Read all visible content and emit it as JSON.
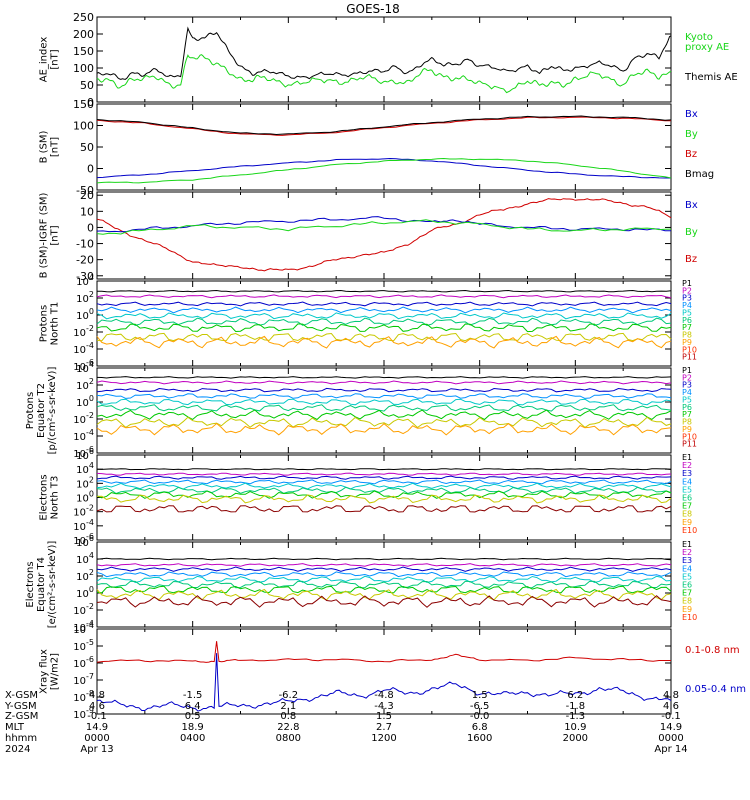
{
  "title": "GOES-18",
  "colors": {
    "axis": "#000000",
    "black": "#000000",
    "green": "#19d619",
    "blue": "#0000c8",
    "red": "#d00000",
    "darkred": "#8b0000"
  },
  "chart_data": [
    {
      "type": "line",
      "panel": "ae_index",
      "ylabel_lines": [
        "AE_index",
        "[nT]"
      ],
      "ylim": [
        0,
        250
      ],
      "yticks": [
        "0",
        "50",
        "100",
        "150",
        "200",
        "250"
      ],
      "legend": [
        {
          "text": "Kyoto",
          "color": "green"
        },
        {
          "text": "proxy AE",
          "color": "green"
        },
        {
          "text": "Themis AE",
          "color": "black"
        }
      ],
      "series": [
        {
          "name": "Themis AE",
          "color": "black",
          "x": [
            0,
            0.5,
            1,
            1.5,
            2,
            2.5,
            3,
            3.5,
            3.8,
            4,
            4.5,
            5,
            5.5,
            6,
            6.5,
            7,
            8,
            9,
            10,
            11,
            12,
            12.5,
            13,
            13.5,
            14,
            14.5,
            15,
            15.5,
            16,
            17,
            18,
            18.5,
            19,
            19.5,
            20,
            21,
            22,
            22.5,
            23,
            23.5,
            24
          ],
          "values": [
            75,
            80,
            70,
            90,
            80,
            90,
            70,
            85,
            220,
            190,
            185,
            200,
            150,
            110,
            85,
            85,
            80,
            75,
            80,
            90,
            85,
            105,
            90,
            110,
            120,
            105,
            115,
            130,
            105,
            90,
            110,
            80,
            100,
            95,
            105,
            110,
            95,
            135,
            140,
            125,
            195
          ]
        },
        {
          "name": "Kyoto proxy AE",
          "color": "green",
          "x": [
            0,
            0.5,
            1,
            1.5,
            2,
            2.5,
            3,
            3.5,
            3.8,
            4,
            4.5,
            5,
            5.5,
            6,
            6.5,
            7,
            8,
            9,
            10,
            11,
            12,
            12.5,
            13,
            13.5,
            14,
            14.5,
            15,
            15.5,
            16,
            17,
            18,
            18.5,
            19,
            19.5,
            20,
            21,
            22,
            22.5,
            23,
            23.5,
            24
          ],
          "values": [
            60,
            65,
            55,
            70,
            60,
            70,
            55,
            60,
            140,
            130,
            120,
            110,
            100,
            70,
            60,
            65,
            60,
            55,
            65,
            70,
            55,
            70,
            60,
            80,
            85,
            75,
            80,
            70,
            45,
            40,
            60,
            40,
            55,
            60,
            70,
            75,
            60,
            85,
            80,
            70,
            90
          ]
        }
      ]
    },
    {
      "type": "line",
      "panel": "b_sm",
      "ylabel_lines": [
        "B (SM)",
        "[nT]"
      ],
      "ylim": [
        -50,
        150
      ],
      "yticks": [
        "-50",
        "0",
        "50",
        "100",
        "150"
      ],
      "legend": [
        {
          "text": "Bx",
          "color": "blue"
        },
        {
          "text": "By",
          "color": "green"
        },
        {
          "text": "Bz",
          "color": "red"
        },
        {
          "text": "Bmag",
          "color": "black"
        }
      ],
      "series": [
        {
          "name": "Bz",
          "color": "red",
          "x": [
            0,
            2,
            4,
            6,
            8,
            10,
            12,
            14,
            16,
            18,
            20,
            22,
            24
          ],
          "values": [
            112,
            105,
            92,
            80,
            78,
            84,
            95,
            105,
            113,
            118,
            119,
            117,
            111
          ]
        },
        {
          "name": "Bmag",
          "color": "black",
          "x": [
            0,
            2,
            4,
            6,
            8,
            10,
            12,
            14,
            16,
            18,
            20,
            22,
            24
          ],
          "values": [
            114,
            107,
            94,
            82,
            80,
            86,
            97,
            107,
            115,
            120,
            121,
            119,
            113
          ]
        },
        {
          "name": "Bx",
          "color": "blue",
          "x": [
            0,
            2,
            4,
            6,
            8,
            10,
            12,
            14,
            16,
            18,
            20,
            22,
            24
          ],
          "values": [
            -21,
            -14,
            -5,
            5,
            13,
            20,
            23,
            18,
            7,
            -4,
            -13,
            -19,
            -22
          ]
        },
        {
          "name": "By",
          "color": "green",
          "x": [
            0,
            2,
            4,
            6,
            8,
            10,
            12,
            14,
            16,
            18,
            20,
            22,
            24
          ],
          "values": [
            -33,
            -32,
            -26,
            -15,
            -3,
            9,
            17,
            22,
            22,
            18,
            8,
            -6,
            -22
          ]
        }
      ]
    },
    {
      "type": "line",
      "panel": "b_minus_igrf",
      "ylabel_lines": [
        "B (SM)-IGRF (SM)",
        "[nT]"
      ],
      "ylim": [
        -32,
        22
      ],
      "yticks": [
        "-30",
        "-20",
        "-10",
        "0",
        "10",
        "20"
      ],
      "legend": [
        {
          "text": "Bx",
          "color": "blue"
        },
        {
          "text": "By",
          "color": "green"
        },
        {
          "text": "Bz",
          "color": "red"
        }
      ],
      "series": [
        {
          "name": "Bz",
          "color": "red",
          "x": [
            0,
            1,
            2,
            3,
            4,
            5,
            6,
            7,
            8,
            9,
            10,
            11,
            12,
            13,
            14,
            15,
            16,
            17,
            18,
            19,
            20,
            21,
            22,
            23,
            24
          ],
          "values": [
            5,
            -2,
            -8,
            -14,
            -21,
            -24,
            -24,
            -27,
            -26,
            -24,
            -20,
            -17,
            -16,
            -10,
            -2,
            2,
            8,
            11,
            15,
            17,
            18,
            17,
            15,
            13,
            6
          ]
        },
        {
          "name": "Bx",
          "color": "blue",
          "x": [
            0,
            2,
            4,
            6,
            8,
            10,
            12,
            14,
            15,
            16,
            18,
            20,
            22,
            24
          ],
          "values": [
            -3,
            -1,
            1,
            3,
            4,
            5,
            6,
            3,
            5,
            2,
            0,
            -1,
            -1,
            -2
          ]
        },
        {
          "name": "By",
          "color": "green",
          "x": [
            0,
            2,
            4,
            6,
            8,
            10,
            12,
            14,
            16,
            18,
            20,
            22,
            24
          ],
          "values": [
            -4,
            -2,
            1,
            0,
            -1,
            1,
            3,
            4,
            2,
            -1,
            -2,
            -1,
            -1
          ]
        }
      ]
    },
    {
      "type": "line",
      "panel": "protons_north_t1",
      "log_scale": true,
      "ylabel_lines": [
        "Protons",
        "North T1"
      ],
      "ylim_exp": [
        -6,
        4
      ],
      "ytick_exps": [
        -6,
        -4,
        -2,
        0,
        2,
        4
      ],
      "legend": [
        "P1",
        "P2",
        "P3",
        "P4",
        "P5",
        "P6",
        "P7",
        "P8",
        "P9",
        "P10",
        "P11"
      ],
      "level_exps": [
        2.8,
        2.2,
        1.3,
        0.6,
        -0.1,
        -0.8,
        -1.5,
        -2.6,
        -3.2
      ]
    },
    {
      "type": "line",
      "panel": "protons_equator_t2",
      "log_scale": true,
      "ylabel_lines": [
        "Protons",
        "Equator T2",
        "[p/(cm²-s-sr-keV)]"
      ],
      "ylim_exp": [
        -6,
        4
      ],
      "ytick_exps": [
        -6,
        -4,
        -2,
        0,
        2,
        4
      ],
      "legend": [
        "P1",
        "P2",
        "P3",
        "P4",
        "P5",
        "P6",
        "P7",
        "P8",
        "P9",
        "P10",
        "P11"
      ],
      "level_exps": [
        2.9,
        2.3,
        1.4,
        0.7,
        0.0,
        -0.7,
        -1.5,
        -2.4,
        -3.2
      ]
    },
    {
      "type": "line",
      "panel": "electrons_north_t3",
      "log_scale": true,
      "ylabel_lines": [
        "Electrons",
        "North T3"
      ],
      "ylim_exp": [
        -6,
        6
      ],
      "ytick_exps": [
        -6,
        -4,
        -2,
        0,
        2,
        4,
        6
      ],
      "legend": [
        "E1",
        "E2",
        "E3",
        "E4",
        "E5",
        "E6",
        "E7",
        "E8",
        "E9",
        "E10"
      ],
      "level_exps": [
        4.0,
        3.3,
        2.8,
        2.2,
        1.6,
        1.0,
        0.4,
        -0.2,
        -1.6
      ]
    },
    {
      "type": "line",
      "panel": "electrons_equator_t4",
      "log_scale": true,
      "ylabel_lines": [
        "Electrons",
        "Equator T4",
        "[e/(cm²-s-sr-keV)]"
      ],
      "ylim_exp": [
        -4,
        6
      ],
      "ytick_exps": [
        -4,
        -2,
        0,
        2,
        4,
        6
      ],
      "legend": [
        "E1",
        "E2",
        "E3",
        "E4",
        "E5",
        "E6",
        "E7",
        "E8",
        "E9",
        "E10"
      ],
      "level_exps": [
        4.0,
        3.3,
        2.8,
        2.2,
        1.6,
        1.0,
        0.4,
        -0.2,
        -1.0
      ]
    },
    {
      "type": "line",
      "panel": "xray_flux",
      "log_scale": true,
      "ylabel_lines": [
        "Xray flux",
        "[W/m2]"
      ],
      "ylim_exp": [
        -9,
        -4
      ],
      "ytick_exps": [
        -9,
        -8,
        -7,
        -6,
        -5,
        -4
      ],
      "legend": [
        {
          "text": "0.1-0.8 nm",
          "color": "red"
        },
        {
          "text": "0.05-0.4 nm",
          "color": "blue"
        }
      ],
      "series": [
        {
          "name": "0.1-0.8 nm",
          "color": "red",
          "x": [
            0,
            2,
            4,
            4.9,
            5,
            5.1,
            6,
            8,
            10,
            12,
            14,
            15,
            16,
            18,
            20,
            22,
            24
          ],
          "values_exp": [
            -5.9,
            -5.85,
            -5.9,
            -5.9,
            -4.7,
            -5.9,
            -5.85,
            -5.8,
            -5.8,
            -5.9,
            -5.8,
            -5.55,
            -5.8,
            -5.85,
            -5.7,
            -5.8,
            -5.85
          ]
        },
        {
          "name": "0.05-0.4 nm",
          "color": "blue",
          "x": [
            0,
            1,
            2,
            3,
            4,
            4.9,
            5,
            5.1,
            6,
            7,
            8,
            9,
            10,
            11,
            12,
            13,
            14,
            15,
            16,
            17,
            18,
            19,
            20,
            21,
            22,
            23,
            24
          ],
          "values_exp": [
            -8.2,
            -8.5,
            -8.6,
            -8.5,
            -8.6,
            -8.6,
            -5.4,
            -8.6,
            -8.5,
            -8.4,
            -8.3,
            -8.0,
            -7.8,
            -7.9,
            -7.6,
            -7.8,
            -7.5,
            -7.3,
            -7.7,
            -7.9,
            -7.7,
            -7.9,
            -7.8,
            -7.5,
            -7.7,
            -8.0,
            -8.2
          ]
        }
      ]
    }
  ],
  "xaxis": {
    "row_labels": [
      "X-GSM",
      "Y-GSM",
      "Z-GSM",
      "MLT",
      "hhmm",
      "2024"
    ],
    "columns": [
      {
        "x": 0,
        "vals": [
          "4.8",
          "4.6",
          "-0.1",
          "14.9",
          "0000",
          "Apr 13"
        ]
      },
      {
        "x": 4,
        "vals": [
          "-1.5",
          "6.4",
          "0.5",
          "18.9",
          "0400",
          ""
        ]
      },
      {
        "x": 8,
        "vals": [
          "-6.2",
          "2.1",
          "0.8",
          "22.8",
          "0800",
          ""
        ]
      },
      {
        "x": 12,
        "vals": [
          "-4.8",
          "-4.3",
          "1.5",
          "2.7",
          "1200",
          ""
        ]
      },
      {
        "x": 16,
        "vals": [
          "1.5",
          "-6.5",
          "-0.0",
          "6.8",
          "1600",
          ""
        ]
      },
      {
        "x": 20,
        "vals": [
          "6.2",
          "-1.8",
          "-1.3",
          "10.9",
          "2000",
          ""
        ]
      },
      {
        "x": 24,
        "vals": [
          "4.8",
          "4.6",
          "-0.1",
          "14.9",
          "0000",
          "Apr 14"
        ]
      }
    ]
  }
}
